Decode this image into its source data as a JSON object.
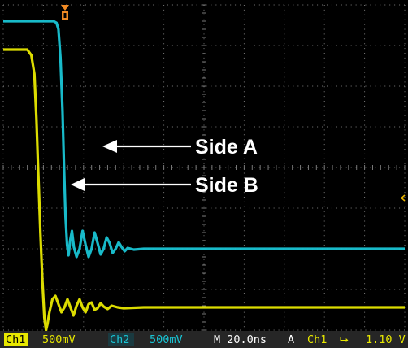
{
  "chart_data": {
    "type": "line",
    "time_unit": "ns",
    "xlim": [
      0,
      200
    ],
    "ylim": [
      -2.0,
      2.0
    ],
    "grid": true,
    "background": "#000000",
    "grid_color": "#7a7a7a",
    "trigger_marker_color": "#f08a24",
    "series": [
      {
        "channel": "Ch2",
        "color": "#19c4d4",
        "points": [
          [
            0,
            1.8
          ],
          [
            25,
            1.8
          ],
          [
            26.5,
            1.78
          ],
          [
            27.5,
            1.7
          ],
          [
            28.5,
            1.35
          ],
          [
            29.5,
            0.7
          ],
          [
            30.3,
            0.0
          ],
          [
            31,
            -0.6
          ],
          [
            31.8,
            -0.95
          ],
          [
            32.5,
            -1.08
          ],
          [
            33.3,
            -0.9
          ],
          [
            34.2,
            -0.78
          ],
          [
            35.2,
            -0.98
          ],
          [
            36.5,
            -1.1
          ],
          [
            38,
            -1.0
          ],
          [
            39.5,
            -0.78
          ],
          [
            41,
            -0.95
          ],
          [
            42.5,
            -1.1
          ],
          [
            44,
            -1.0
          ],
          [
            45.5,
            -0.8
          ],
          [
            47,
            -0.93
          ],
          [
            48.5,
            -1.07
          ],
          [
            50,
            -1.0
          ],
          [
            51.5,
            -0.86
          ],
          [
            53,
            -0.93
          ],
          [
            54.5,
            -1.05
          ],
          [
            56,
            -1.0
          ],
          [
            57.5,
            -0.92
          ],
          [
            59,
            -0.98
          ],
          [
            60.5,
            -1.03
          ],
          [
            62,
            -0.99
          ],
          [
            65,
            -1.01
          ],
          [
            70,
            -1.0
          ],
          [
            80,
            -1.0
          ],
          [
            100,
            -1.0
          ],
          [
            150,
            -1.0
          ],
          [
            200,
            -1.0
          ]
        ]
      },
      {
        "channel": "Ch1",
        "color": "#e8e800",
        "points": [
          [
            0,
            1.45
          ],
          [
            12,
            1.45
          ],
          [
            14,
            1.38
          ],
          [
            15.5,
            1.15
          ],
          [
            16.5,
            0.6
          ],
          [
            17.5,
            -0.1
          ],
          [
            18.5,
            -0.8
          ],
          [
            19.5,
            -1.4
          ],
          [
            20.5,
            -1.85
          ],
          [
            21.3,
            -2.0
          ],
          [
            22,
            -1.93
          ],
          [
            23,
            -1.78
          ],
          [
            24.5,
            -1.62
          ],
          [
            26,
            -1.58
          ],
          [
            27.5,
            -1.68
          ],
          [
            29,
            -1.78
          ],
          [
            30.5,
            -1.72
          ],
          [
            32,
            -1.62
          ],
          [
            33.5,
            -1.72
          ],
          [
            35,
            -1.82
          ],
          [
            36.5,
            -1.7
          ],
          [
            38,
            -1.62
          ],
          [
            39.5,
            -1.72
          ],
          [
            41,
            -1.78
          ],
          [
            42.5,
            -1.68
          ],
          [
            44,
            -1.66
          ],
          [
            45.5,
            -1.75
          ],
          [
            47,
            -1.73
          ],
          [
            48.5,
            -1.67
          ],
          [
            50,
            -1.71
          ],
          [
            52,
            -1.74
          ],
          [
            54,
            -1.7
          ],
          [
            57,
            -1.72
          ],
          [
            60,
            -1.73
          ],
          [
            70,
            -1.72
          ],
          [
            100,
            -1.72
          ],
          [
            150,
            -1.72
          ],
          [
            200,
            -1.72
          ]
        ]
      }
    ],
    "annotations": [
      {
        "text": "Side A",
        "points_to": [
          30,
          -0.2
        ]
      },
      {
        "text": "Side B",
        "points_to": [
          18.5,
          -0.8
        ]
      }
    ]
  },
  "status": {
    "ch1_label": "Ch1",
    "ch1_scale": "500mV",
    "ch2_label": "Ch2",
    "ch2_scale": "500mV",
    "timebase": "M 20.0ns",
    "trigger_mode": "A",
    "trigger_source": "Ch1",
    "trigger_slope": "⮡",
    "trigger_level": "1.10 V"
  }
}
